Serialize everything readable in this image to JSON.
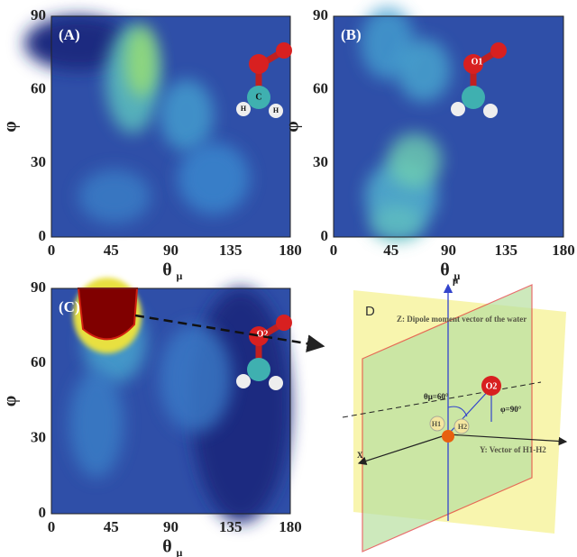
{
  "panels": [
    {
      "label": "(A)",
      "atom_labels": [
        "C",
        "H",
        "H"
      ],
      "x_axis_label": "θ",
      "x_axis_subscript": "μ",
      "y_axis_label": "φ",
      "xticks": [
        0,
        45,
        90,
        135,
        180
      ],
      "yticks": [
        0,
        30,
        60,
        90
      ]
    },
    {
      "label": "(B)",
      "atom_labels": [
        "O1"
      ],
      "x_axis_label": "θ",
      "x_axis_subscript": "μ",
      "y_axis_label": "φ",
      "xticks": [
        0,
        45,
        90,
        135,
        180
      ],
      "yticks": [
        0,
        30,
        60,
        90
      ]
    },
    {
      "label": "(C)",
      "atom_labels": [
        "O2"
      ],
      "x_axis_label": "θ",
      "x_axis_subscript": "μ",
      "y_axis_label": "φ",
      "xticks": [
        0,
        45,
        90,
        135,
        180
      ],
      "yticks": [
        0,
        30,
        60,
        90
      ]
    }
  ],
  "diagram": {
    "label": "D",
    "z_axis_label": "Z: Dipole moment vector of the water",
    "z_axis_symbol": "μ",
    "y_axis_label": "Y: Vector of H1-H2",
    "x_axis_label": "X",
    "theta_label": "θμ=60°",
    "phi_label": "φ=90°",
    "atom_labels": [
      "O2",
      "H1",
      "H2"
    ]
  }
}
